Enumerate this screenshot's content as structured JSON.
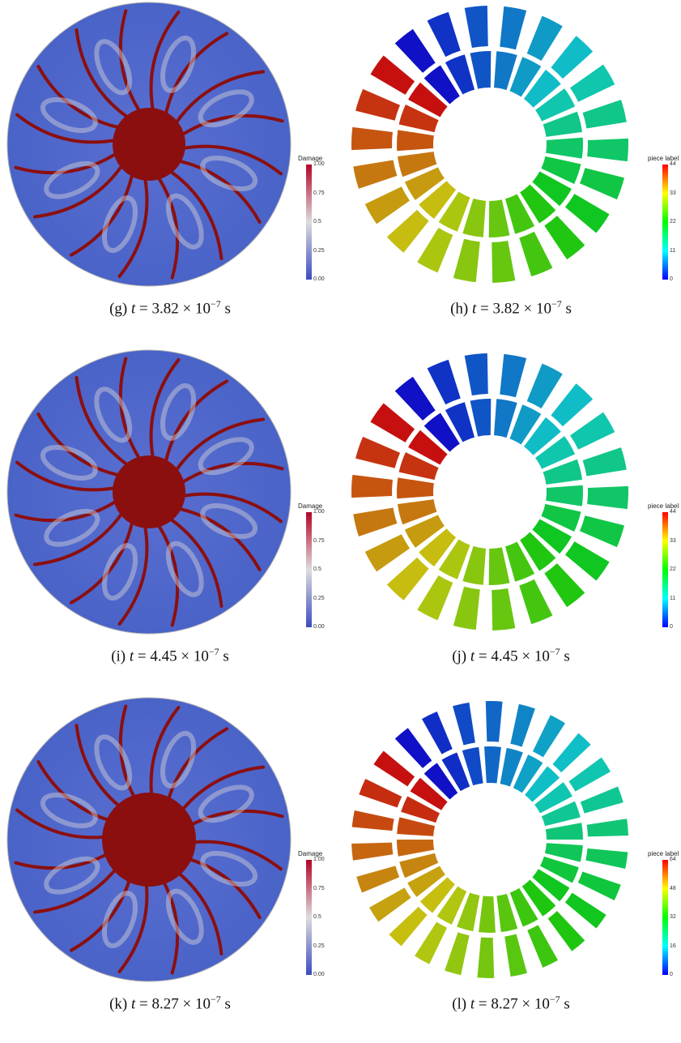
{
  "figure": {
    "panels": [
      {
        "id": "g",
        "kind": "damage",
        "caption_label": "(g)",
        "caption_time": "3.82",
        "caption_exp": "−7",
        "caption_unit": "s",
        "legend_title": "Damage",
        "legend_ticks": [
          "1.00",
          "0.75",
          "0.5",
          "0.25",
          "0.00"
        ]
      },
      {
        "id": "h",
        "kind": "pieces",
        "caption_label": "(h)",
        "caption_time": "3.82",
        "caption_exp": "−7",
        "caption_unit": "s",
        "legend_title": "piece label",
        "legend_ticks": [
          "44",
          "33",
          "22",
          "11",
          "0"
        ]
      },
      {
        "id": "i",
        "kind": "damage",
        "caption_label": "(i)",
        "caption_time": "4.45",
        "caption_exp": "−7",
        "caption_unit": "s",
        "legend_title": "Damage",
        "legend_ticks": [
          "1.00",
          "0.75",
          "0.5",
          "0.25",
          "0.00"
        ]
      },
      {
        "id": "j",
        "kind": "pieces",
        "caption_label": "(j)",
        "caption_time": "4.45",
        "caption_exp": "−7",
        "caption_unit": "s",
        "legend_title": "piece label",
        "legend_ticks": [
          "44",
          "33",
          "22",
          "11",
          "0"
        ]
      },
      {
        "id": "k",
        "kind": "damage",
        "caption_label": "(k)",
        "caption_time": "8.27",
        "caption_exp": "−7",
        "caption_unit": "s",
        "legend_title": "Damage",
        "legend_ticks": [
          "1.00",
          "0.75",
          "0.5",
          "0.25",
          "0.00"
        ]
      },
      {
        "id": "l",
        "kind": "pieces",
        "caption_label": "(l)",
        "caption_time": "8.27",
        "caption_exp": "−7",
        "caption_unit": "s",
        "legend_title": "piece label",
        "legend_ticks": [
          "64",
          "48",
          "32",
          "16",
          "0"
        ]
      }
    ],
    "colors": {
      "damage_low": "#3b4cc0",
      "damage_mid": "#dddddd",
      "damage_high": "#8b0f0f",
      "pieces_scale": [
        "#0000ff",
        "#00ffff",
        "#00ff00",
        "#ffff00",
        "#ff0000"
      ]
    }
  }
}
